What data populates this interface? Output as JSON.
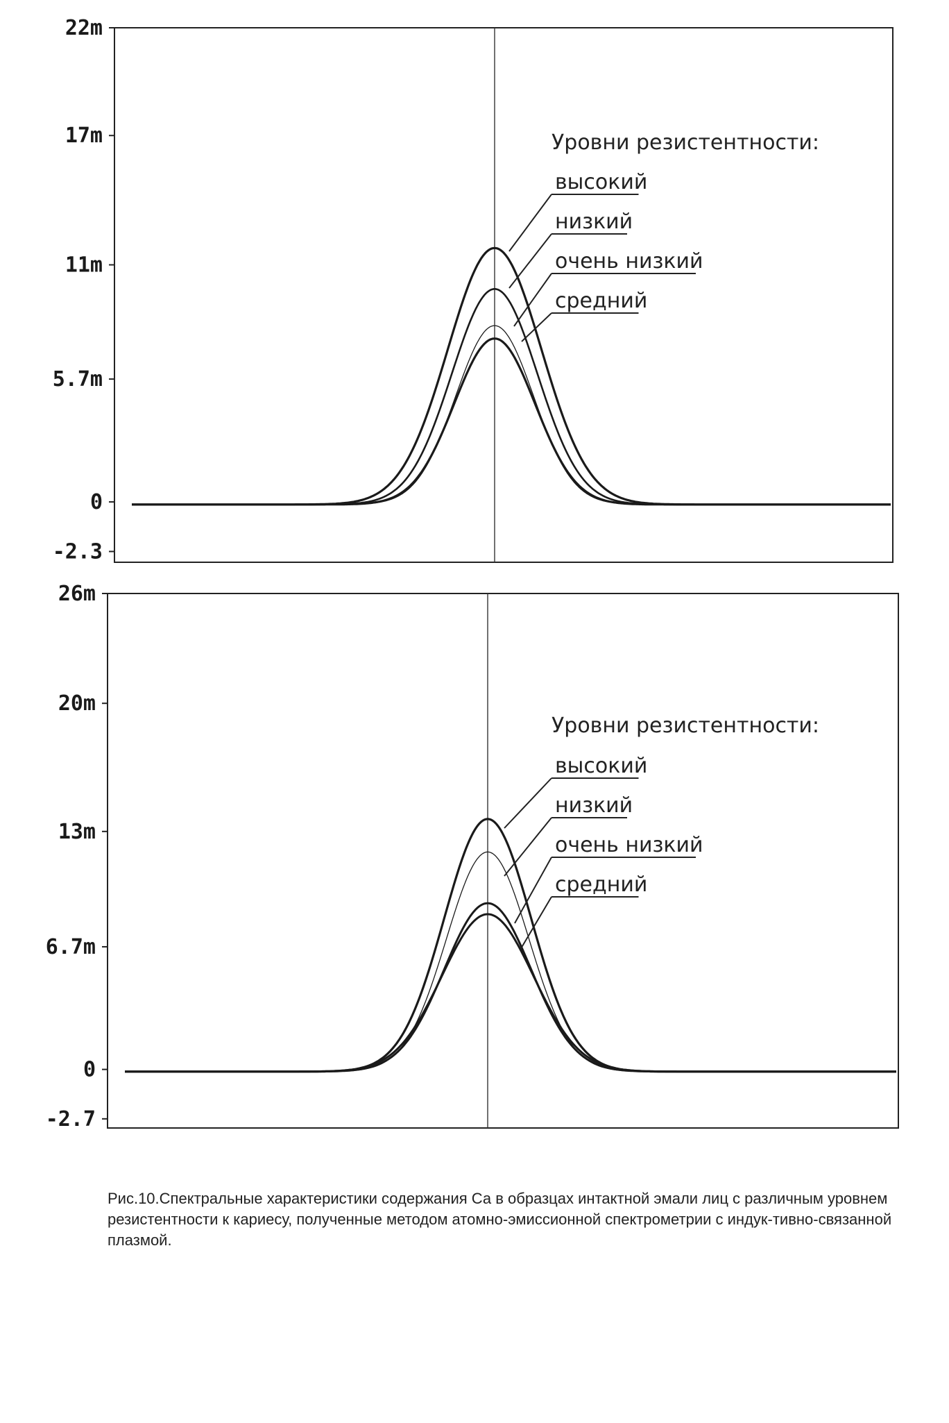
{
  "chart_data": [
    {
      "type": "line",
      "y_ticks": [
        "22m",
        "17m",
        "11m",
        "5.7m",
        "0",
        "-2.3"
      ],
      "y_tick_values": [
        22,
        17,
        11,
        5.7,
        0,
        -2.3
      ],
      "ylim": [
        -2.8,
        22
      ],
      "legend_title": "Уровни резистентности:",
      "grid": false,
      "center_line": true,
      "series": [
        {
          "name": "высокий",
          "peak": 11.9,
          "width": 0.06,
          "stroke": 3.2
        },
        {
          "name": "низкий",
          "peak": 10.0,
          "width": 0.055,
          "stroke": 2.6
        },
        {
          "name": "очень низкий",
          "peak": 8.3,
          "width": 0.05,
          "stroke": 1.3
        },
        {
          "name": "средний",
          "peak": 7.7,
          "width": 0.052,
          "stroke": 3.2
        }
      ]
    },
    {
      "type": "line",
      "y_ticks": [
        "26m",
        "20m",
        "13m",
        "6.7m",
        "0",
        "-2.7"
      ],
      "y_tick_values": [
        26,
        20,
        13,
        6.7,
        0,
        -2.7
      ],
      "ylim": [
        -3.2,
        26
      ],
      "legend_title": "Уровни резистентности:",
      "grid": false,
      "center_line": true,
      "series": [
        {
          "name": "высокий",
          "peak": 13.8,
          "width": 0.055,
          "stroke": 3.2
        },
        {
          "name": "низкий",
          "peak": 12.0,
          "width": 0.052,
          "stroke": 1.3
        },
        {
          "name": "очень низкий",
          "peak": 9.2,
          "width": 0.055,
          "stroke": 3.0
        },
        {
          "name": "средний",
          "peak": 8.6,
          "width": 0.058,
          "stroke": 3.0
        }
      ]
    }
  ],
  "caption": "Рис.10.Спектральные характеристики содержания Са в образцах интактной эмали лиц с различным уровнем резистентности к кариесу, полученные методом атомно-эмиссионной спектрометрии с индук-тивно-связанной плазмой."
}
